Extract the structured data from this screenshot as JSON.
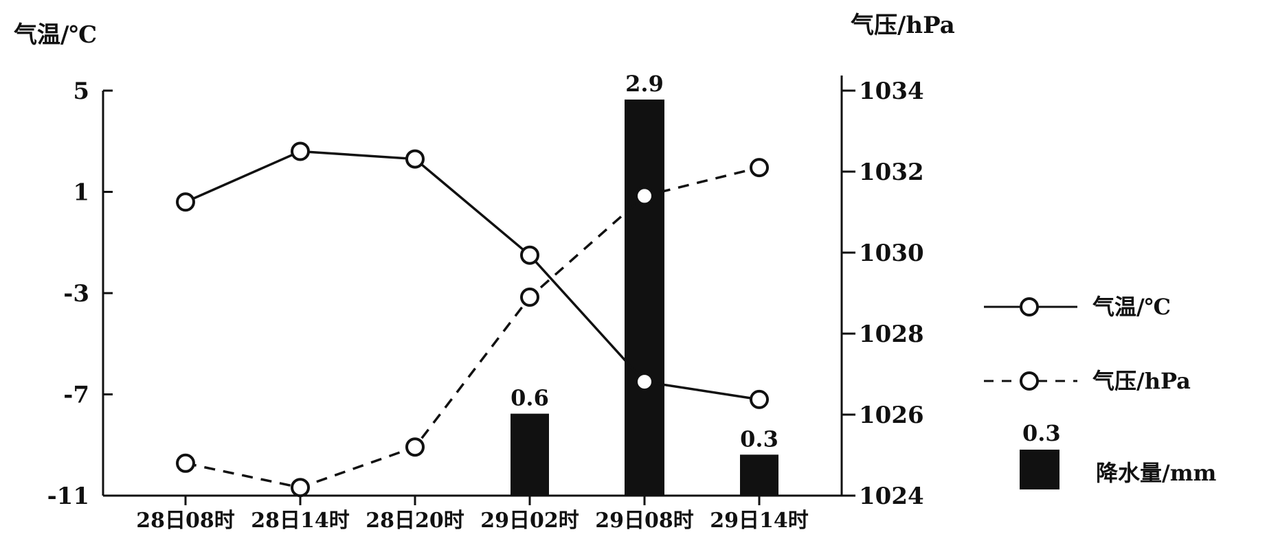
{
  "chart_data": {
    "type": "line",
    "categories": [
      "28日08时",
      "28日14时",
      "28日20时",
      "29日02时",
      "29日08时",
      "29日14时"
    ],
    "left_axis": {
      "label": "气温/℃",
      "ticks": [
        "5",
        "1",
        "-3",
        "-7",
        "-11"
      ],
      "range": [
        -11,
        5
      ]
    },
    "right_axis": {
      "label": "气压/hPa",
      "ticks": [
        "1034",
        "1032",
        "1030",
        "1028",
        "1026",
        "1024"
      ],
      "range": [
        1024,
        1034
      ]
    },
    "series": [
      {
        "name": "气温/℃",
        "axis": "left",
        "style": "solid",
        "values": [
          0.6,
          2.6,
          2.3,
          -1.5,
          -6.5,
          -7.2
        ]
      },
      {
        "name": "气压/hPa",
        "axis": "right",
        "style": "dashed",
        "values": [
          1024.8,
          1024.2,
          1025.2,
          1028.9,
          1031.4,
          1032.1
        ]
      }
    ],
    "bars": {
      "name": "降水量/mm",
      "values": [
        null,
        null,
        null,
        0.6,
        2.9,
        0.3
      ],
      "labels": [
        "",
        "",
        "",
        "0.6",
        "2.9",
        "0.3"
      ]
    },
    "legend": {
      "position": "right",
      "items": [
        {
          "label": "气温/℃",
          "marker": "solid-line-circle"
        },
        {
          "label": "气压/hPa",
          "marker": "dashed-line-circle"
        },
        {
          "label": "降水量/mm",
          "marker": "bar",
          "value_label": "0.3"
        }
      ]
    }
  }
}
